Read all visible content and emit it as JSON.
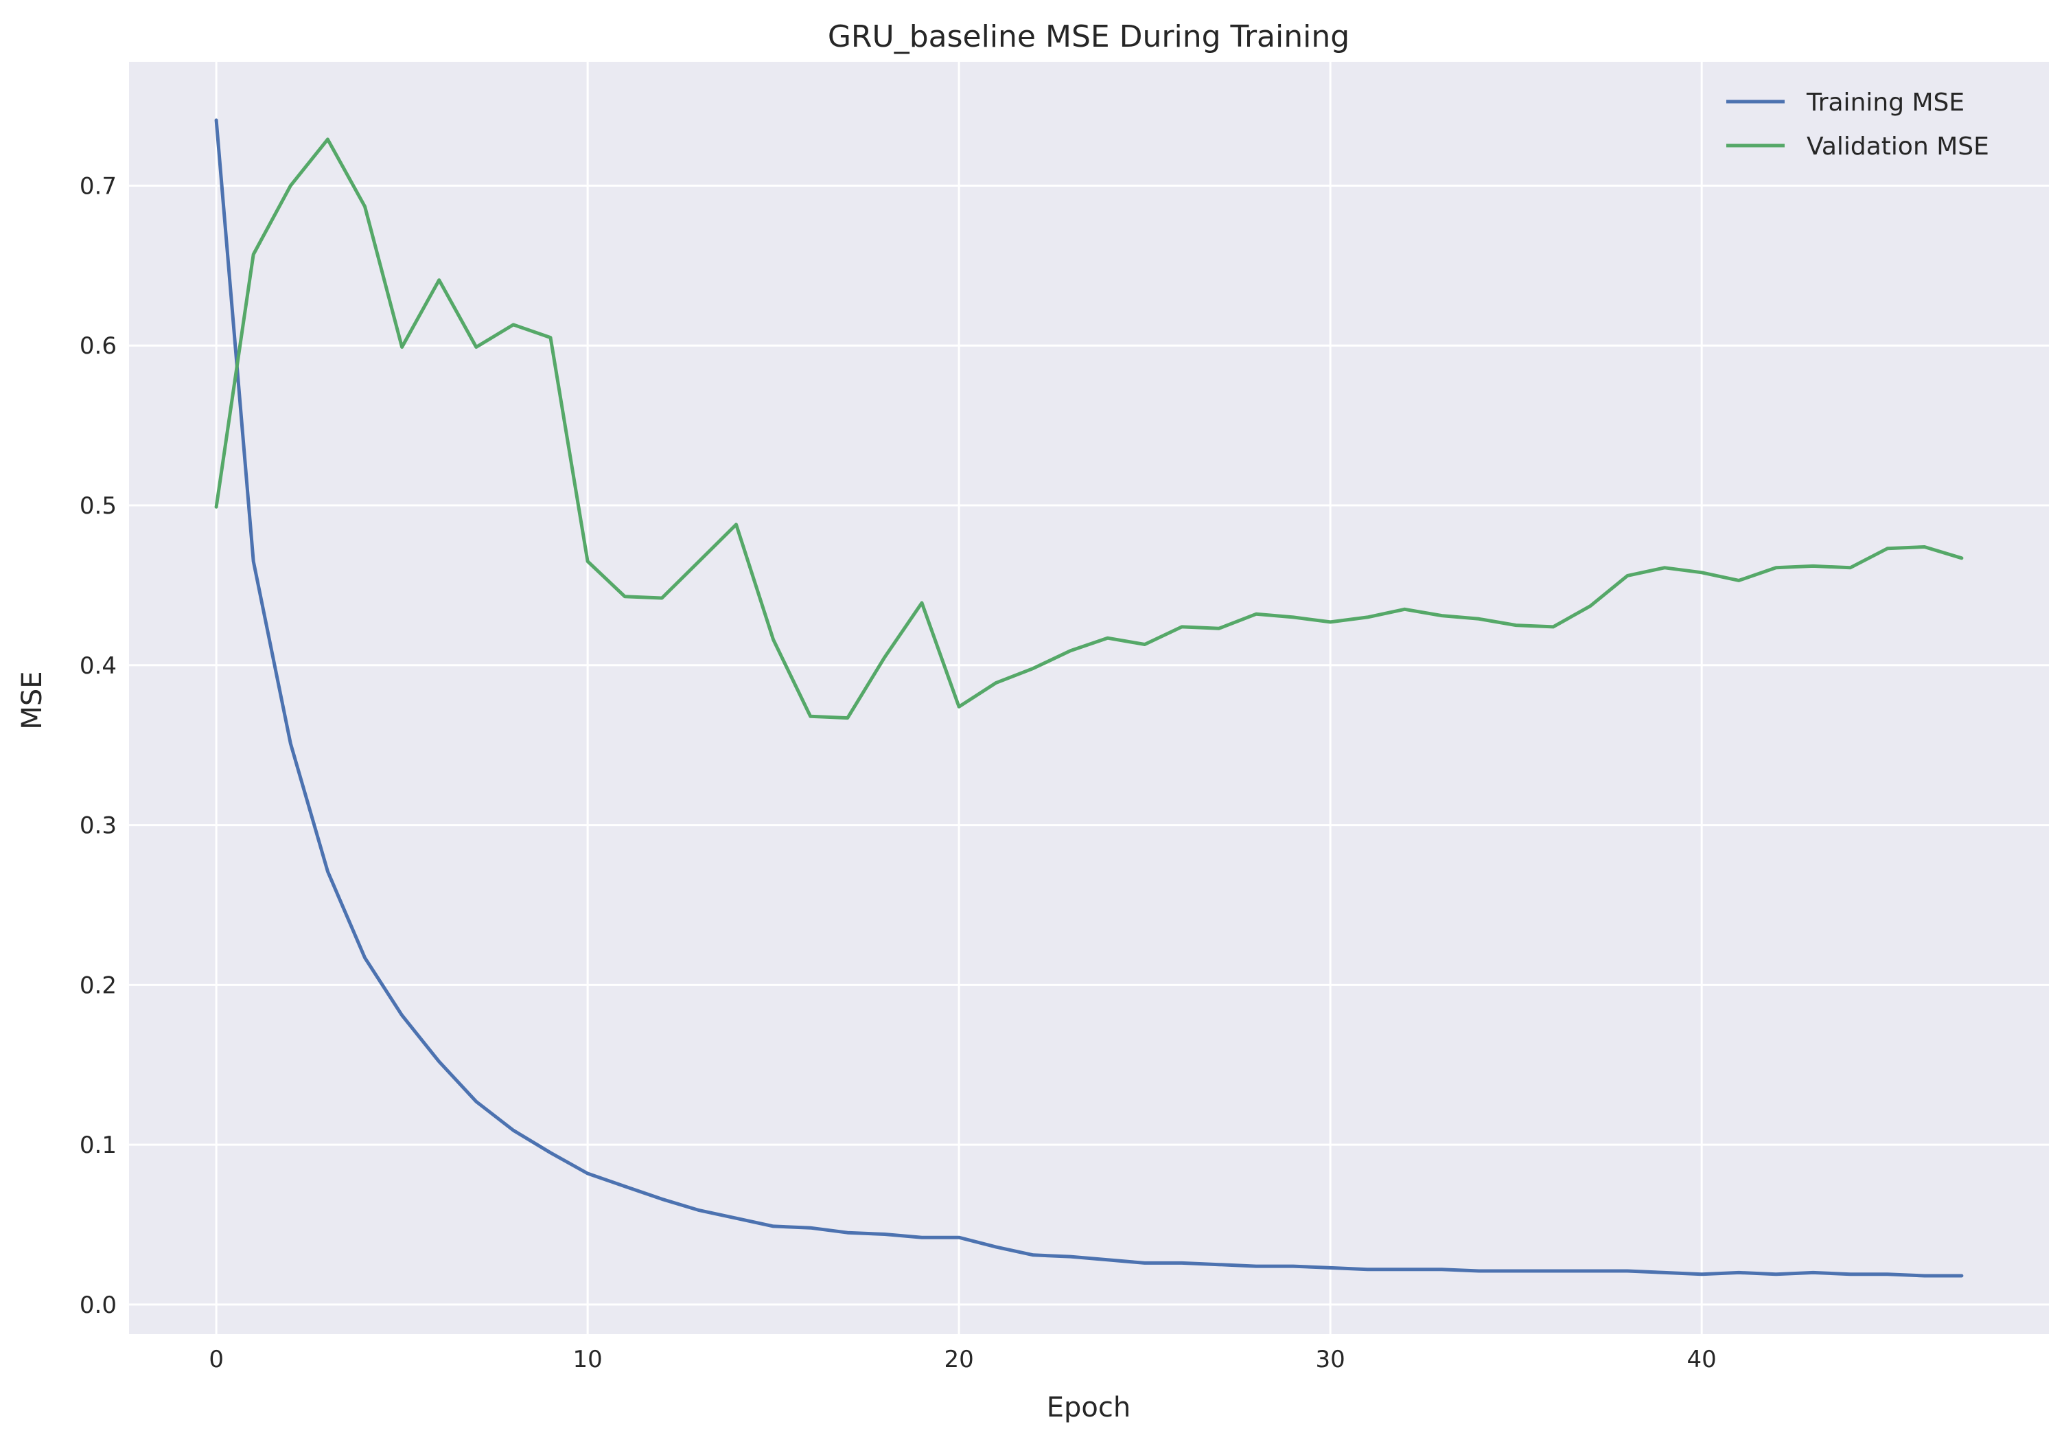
{
  "chart_data": {
    "type": "line",
    "title": "GRU_baseline MSE During Training",
    "xlabel": "Epoch",
    "ylabel": "MSE",
    "xlim": [
      -2.35,
      49.35
    ],
    "ylim": [
      -0.0185,
      0.7775
    ],
    "xticks": [
      0,
      10,
      20,
      30,
      40
    ],
    "xtick_labels": [
      "0",
      "10",
      "20",
      "30",
      "40"
    ],
    "yticks": [
      0.0,
      0.1,
      0.2,
      0.3,
      0.4,
      0.5,
      0.6,
      0.7
    ],
    "ytick_labels": [
      "0.0",
      "0.1",
      "0.2",
      "0.3",
      "0.4",
      "0.5",
      "0.6",
      "0.7"
    ],
    "grid": true,
    "legend_position": "top-right",
    "x": [
      0,
      1,
      2,
      3,
      4,
      5,
      6,
      7,
      8,
      9,
      10,
      11,
      12,
      13,
      14,
      15,
      16,
      17,
      18,
      19,
      20,
      21,
      22,
      23,
      24,
      25,
      26,
      27,
      28,
      29,
      30,
      31,
      32,
      33,
      34,
      35,
      36,
      37,
      38,
      39,
      40,
      41,
      42,
      43,
      44,
      45,
      46,
      47
    ],
    "series": [
      {
        "name": "Training MSE",
        "color": "#4c72b0",
        "values": [
          0.741,
          0.465,
          0.351,
          0.271,
          0.217,
          0.181,
          0.152,
          0.127,
          0.109,
          0.095,
          0.082,
          0.074,
          0.066,
          0.059,
          0.054,
          0.049,
          0.048,
          0.045,
          0.044,
          0.042,
          0.042,
          0.036,
          0.031,
          0.03,
          0.028,
          0.026,
          0.026,
          0.025,
          0.024,
          0.024,
          0.023,
          0.022,
          0.022,
          0.022,
          0.021,
          0.021,
          0.021,
          0.021,
          0.021,
          0.02,
          0.019,
          0.02,
          0.019,
          0.02,
          0.019,
          0.019,
          0.018,
          0.018
        ]
      },
      {
        "name": "Validation MSE",
        "color": "#55a868",
        "values": [
          0.499,
          0.657,
          0.7,
          0.729,
          0.687,
          0.599,
          0.641,
          0.599,
          0.613,
          0.605,
          0.465,
          0.443,
          0.442,
          0.465,
          0.488,
          0.416,
          0.368,
          0.367,
          0.405,
          0.439,
          0.374,
          0.389,
          0.398,
          0.409,
          0.417,
          0.413,
          0.424,
          0.423,
          0.432,
          0.43,
          0.427,
          0.43,
          0.435,
          0.431,
          0.429,
          0.425,
          0.424,
          0.437,
          0.456,
          0.461,
          0.458,
          0.453,
          0.461,
          0.462,
          0.461,
          0.473,
          0.474,
          0.467
        ]
      }
    ],
    "style": {
      "background": "#eaeaf2",
      "grid_color": "#ffffff"
    }
  }
}
